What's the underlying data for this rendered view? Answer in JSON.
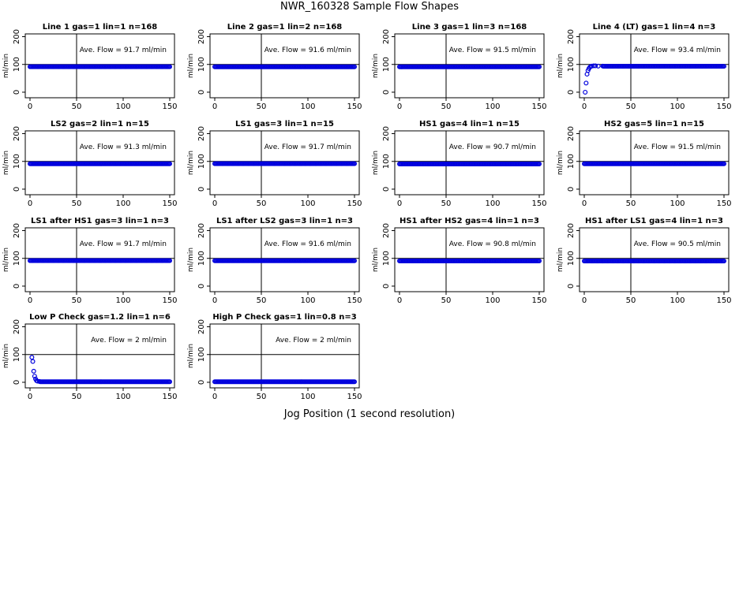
{
  "figure": {
    "title": "NWR_160328  Sample Flow Shapes",
    "xlabel": "Jog Position (1 second resolution)"
  },
  "colors": {
    "points": "#0000dd",
    "axis": "#000000",
    "refline": "#000000"
  },
  "chart_data": [
    {
      "type": "scatter",
      "title": "Line 1 gas=1 lin=1 n=168",
      "ylabel": "ml/min",
      "annotation": "Ave. Flow = 91.7  ml/min",
      "xlim": [
        0,
        150
      ],
      "ylim": [
        -20,
        210
      ],
      "xticks": [
        0,
        50,
        100,
        150
      ],
      "yticks": [
        0,
        100,
        200
      ],
      "refline_x": 50,
      "refline_y": 100,
      "shape": "flat",
      "level": 91.7
    },
    {
      "type": "scatter",
      "title": "Line 2 gas=1 lin=2 n=168",
      "ylabel": "ml/min",
      "annotation": "Ave. Flow = 91.6  ml/min",
      "xlim": [
        0,
        150
      ],
      "ylim": [
        -20,
        210
      ],
      "xticks": [
        0,
        50,
        100,
        150
      ],
      "yticks": [
        0,
        100,
        200
      ],
      "refline_x": 50,
      "refline_y": 100,
      "shape": "flat",
      "level": 91.6
    },
    {
      "type": "scatter",
      "title": "Line 3 gas=1 lin=3 n=168",
      "ylabel": "ml/min",
      "annotation": "Ave. Flow = 91.5  ml/min",
      "xlim": [
        0,
        150
      ],
      "ylim": [
        -20,
        210
      ],
      "xticks": [
        0,
        50,
        100,
        150
      ],
      "yticks": [
        0,
        100,
        200
      ],
      "refline_x": 50,
      "refline_y": 100,
      "shape": "flat",
      "level": 91.5
    },
    {
      "type": "scatter",
      "title": "Line 4 (LT) gas=1 lin=4 n=3",
      "ylabel": "ml/min",
      "annotation": "Ave. Flow = 93.4  ml/min",
      "xlim": [
        0,
        150
      ],
      "ylim": [
        -20,
        210
      ],
      "xticks": [
        0,
        50,
        100,
        150
      ],
      "yticks": [
        0,
        100,
        200
      ],
      "refline_x": 50,
      "refline_y": 100,
      "shape": "rise",
      "level": 93.4,
      "points": [
        [
          1,
          0
        ],
        [
          2,
          33
        ],
        [
          3,
          65
        ],
        [
          4,
          78
        ],
        [
          5,
          85
        ],
        [
          6,
          90
        ],
        [
          7,
          93
        ],
        [
          8,
          94
        ],
        [
          10,
          95
        ],
        [
          12,
          95
        ],
        [
          15,
          94
        ],
        [
          20,
          94
        ]
      ]
    },
    {
      "type": "scatter",
      "title": "LS2 gas=2 lin=1 n=15",
      "ylabel": "ml/min",
      "annotation": "Ave. Flow = 91.3  ml/min",
      "xlim": [
        0,
        150
      ],
      "ylim": [
        -20,
        210
      ],
      "xticks": [
        0,
        50,
        100,
        150
      ],
      "yticks": [
        0,
        100,
        200
      ],
      "refline_x": 50,
      "refline_y": 100,
      "shape": "flat",
      "level": 91.3
    },
    {
      "type": "scatter",
      "title": "LS1 gas=3 lin=1 n=15",
      "ylabel": "ml/min",
      "annotation": "Ave. Flow = 91.7  ml/min",
      "xlim": [
        0,
        150
      ],
      "ylim": [
        -20,
        210
      ],
      "xticks": [
        0,
        50,
        100,
        150
      ],
      "yticks": [
        0,
        100,
        200
      ],
      "refline_x": 50,
      "refline_y": 100,
      "shape": "flat",
      "level": 91.7
    },
    {
      "type": "scatter",
      "title": "HS1 gas=4 lin=1 n=15",
      "ylabel": "ml/min",
      "annotation": "Ave. Flow = 90.7  ml/min",
      "xlim": [
        0,
        150
      ],
      "ylim": [
        -20,
        210
      ],
      "xticks": [
        0,
        50,
        100,
        150
      ],
      "yticks": [
        0,
        100,
        200
      ],
      "refline_x": 50,
      "refline_y": 100,
      "shape": "flat",
      "level": 90.7
    },
    {
      "type": "scatter",
      "title": "HS2 gas=5 lin=1 n=15",
      "ylabel": "ml/min",
      "annotation": "Ave. Flow = 91.5  ml/min",
      "xlim": [
        0,
        150
      ],
      "ylim": [
        -20,
        210
      ],
      "xticks": [
        0,
        50,
        100,
        150
      ],
      "yticks": [
        0,
        100,
        200
      ],
      "refline_x": 50,
      "refline_y": 100,
      "shape": "flat",
      "level": 91.5
    },
    {
      "type": "scatter",
      "title": "LS1 after HS1 gas=3 lin=1 n=3",
      "ylabel": "ml/min",
      "annotation": "Ave. Flow = 91.7  ml/min",
      "xlim": [
        0,
        150
      ],
      "ylim": [
        -20,
        210
      ],
      "xticks": [
        0,
        50,
        100,
        150
      ],
      "yticks": [
        0,
        100,
        200
      ],
      "refline_x": 50,
      "refline_y": 100,
      "shape": "flat",
      "level": 91.7
    },
    {
      "type": "scatter",
      "title": "LS1 after LS2 gas=3 lin=1 n=3",
      "ylabel": "ml/min",
      "annotation": "Ave. Flow = 91.6  ml/min",
      "xlim": [
        0,
        150
      ],
      "ylim": [
        -20,
        210
      ],
      "xticks": [
        0,
        50,
        100,
        150
      ],
      "yticks": [
        0,
        100,
        200
      ],
      "refline_x": 50,
      "refline_y": 100,
      "shape": "flat",
      "level": 91.6
    },
    {
      "type": "scatter",
      "title": "HS1 after HS2 gas=4 lin=1 n=3",
      "ylabel": "ml/min",
      "annotation": "Ave. Flow = 90.8  ml/min",
      "xlim": [
        0,
        150
      ],
      "ylim": [
        -20,
        210
      ],
      "xticks": [
        0,
        50,
        100,
        150
      ],
      "yticks": [
        0,
        100,
        200
      ],
      "refline_x": 50,
      "refline_y": 100,
      "shape": "flat",
      "level": 90.8
    },
    {
      "type": "scatter",
      "title": "HS1 after LS1 gas=4 lin=1 n=3",
      "ylabel": "ml/min",
      "annotation": "Ave. Flow = 90.5  ml/min",
      "xlim": [
        0,
        150
      ],
      "ylim": [
        -20,
        210
      ],
      "xticks": [
        0,
        50,
        100,
        150
      ],
      "yticks": [
        0,
        100,
        200
      ],
      "refline_x": 50,
      "refline_y": 100,
      "shape": "flat",
      "level": 90.5
    },
    {
      "type": "scatter",
      "title": "Low P Check gas=1.2 lin=1 n=6",
      "ylabel": "ml/min",
      "annotation": "Ave. Flow = 2  ml/min",
      "xlim": [
        0,
        150
      ],
      "ylim": [
        -20,
        210
      ],
      "xticks": [
        0,
        50,
        100,
        150
      ],
      "yticks": [
        0,
        100,
        200
      ],
      "refline_x": 50,
      "refline_y": 100,
      "shape": "decay",
      "level": 2,
      "points": [
        [
          2,
          90
        ],
        [
          3,
          75
        ],
        [
          4,
          40
        ],
        [
          5,
          22
        ],
        [
          6,
          12
        ],
        [
          7,
          6
        ],
        [
          8,
          4
        ],
        [
          10,
          3
        ]
      ]
    },
    {
      "type": "scatter",
      "title": "High P Check gas=1 lin=0.8 n=3",
      "ylabel": "ml/min",
      "annotation": "Ave. Flow = 2  ml/min",
      "xlim": [
        0,
        150
      ],
      "ylim": [
        -20,
        210
      ],
      "xticks": [
        0,
        50,
        100,
        150
      ],
      "yticks": [
        0,
        100,
        200
      ],
      "refline_x": 50,
      "refline_y": 100,
      "shape": "flat",
      "level": 2
    }
  ]
}
